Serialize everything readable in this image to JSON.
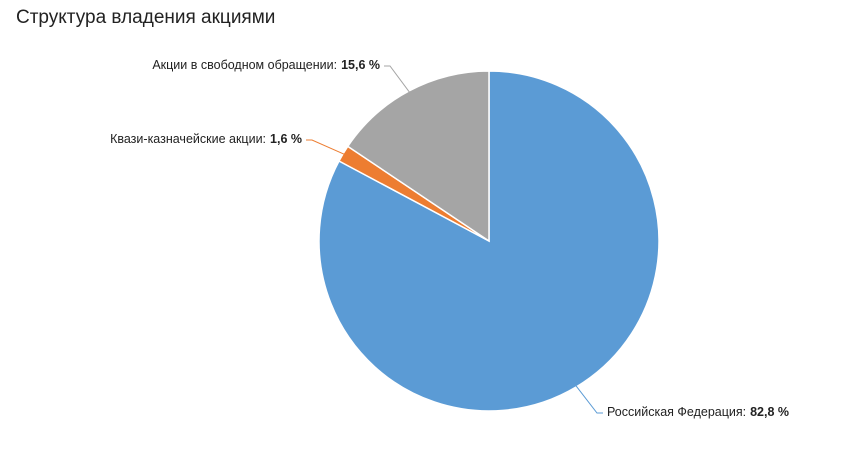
{
  "chart_data": {
    "type": "pie",
    "title": "Структура владения акциями",
    "categories": [
      "Российская Федерация:",
      "Квази-казначейские акции:",
      "Акции в свободном обращении:"
    ],
    "values": [
      82.8,
      1.6,
      15.6
    ],
    "value_labels": [
      "82,8 %",
      "1,6 %",
      "15,6 %"
    ],
    "colors": [
      "#5b9bd5",
      "#ed7d31",
      "#a5a5a5"
    ]
  }
}
